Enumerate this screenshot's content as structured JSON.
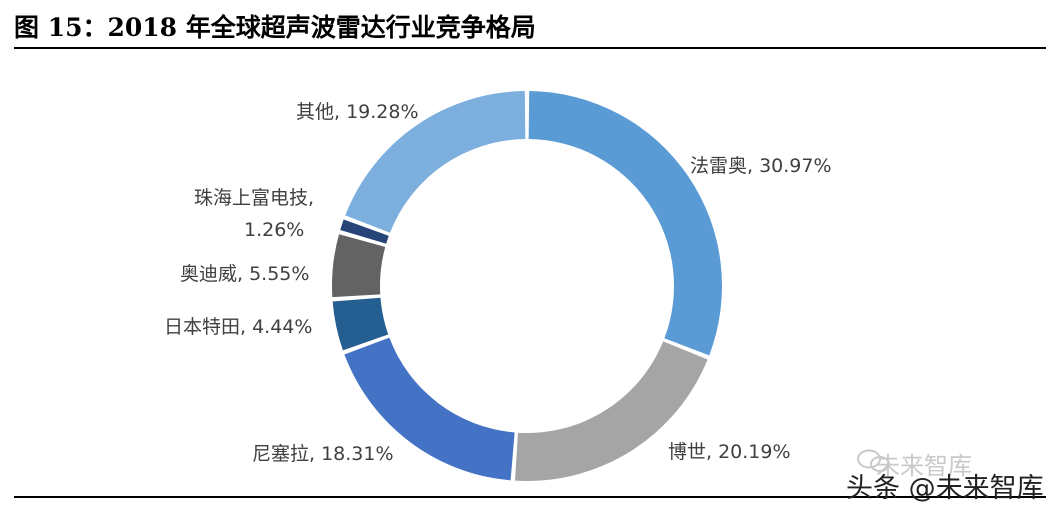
{
  "title": "图  15：2018 年全球超声波雷达行业竞争格局",
  "watermark": {
    "subtitle": "未来智库",
    "main": "头条 @未来智库"
  },
  "chart_data": {
    "type": "pie",
    "donut": true,
    "title": "图  15：2018 年全球超声波雷达行业竞争格局",
    "legend": "none",
    "slices": [
      {
        "name": "法雷奥",
        "value": 30.97,
        "label_lines": [
          "法雷奥, 30.97%"
        ],
        "color": "#5b9bd5"
      },
      {
        "name": "博世",
        "value": 20.19,
        "label_lines": [
          "博世, 20.19%"
        ],
        "color": "#a5a5a5"
      },
      {
        "name": "尼塞拉",
        "value": 18.31,
        "label_lines": [
          "尼塞拉, 18.31%"
        ],
        "color": "#4472c4"
      },
      {
        "name": "日本特田",
        "value": 4.44,
        "label_lines": [
          "日本特田, 4.44%"
        ],
        "color": "#255e91"
      },
      {
        "name": "奥迪威",
        "value": 5.55,
        "label_lines": [
          "奥迪威, 5.55%"
        ],
        "color": "#636363"
      },
      {
        "name": "珠海上富电技",
        "value": 1.26,
        "label_lines": [
          "珠海上富电技,",
          "1.26%"
        ],
        "color": "#264478"
      },
      {
        "name": "其他",
        "value": 19.28,
        "label_lines": [
          "其他, 19.28%"
        ],
        "color": "#7cafdd"
      }
    ]
  }
}
